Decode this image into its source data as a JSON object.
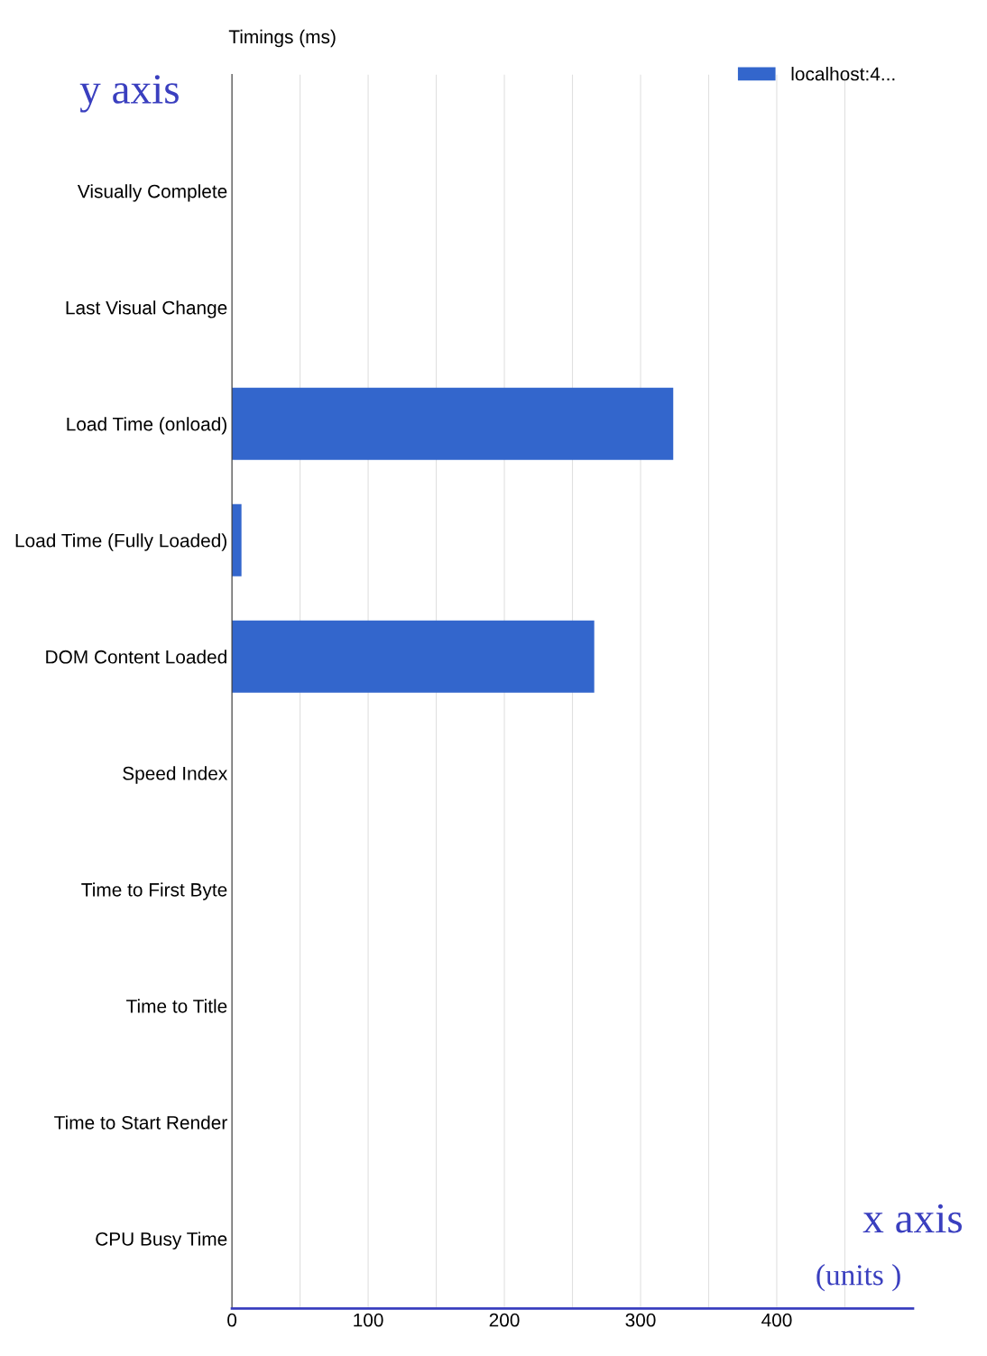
{
  "chart_data": {
    "type": "bar",
    "orientation": "horizontal",
    "title": "Timings (ms)",
    "categories": [
      "Visually Complete",
      "Last Visual Change",
      "Load Time (onload)",
      "Load Time (Fully Loaded)",
      "DOM Content Loaded",
      "Speed Index",
      "Time to First Byte",
      "Time to Title",
      "Time to Start Render",
      "CPU Busy Time"
    ],
    "series": [
      {
        "name": "localhost:4...",
        "color": "#3366cc",
        "values": [
          0,
          0,
          324,
          7,
          266,
          0,
          0,
          0,
          0,
          0
        ]
      }
    ],
    "xlim": [
      0,
      500
    ],
    "xticks": [
      0,
      {
        "value": 50,
        "label": null
      },
      100,
      {
        "value": 150,
        "label": null
      },
      200,
      {
        "value": 250,
        "label": null
      },
      300,
      {
        "value": 350,
        "label": null
      },
      400,
      {
        "value": 450,
        "label": null
      }
    ],
    "grid": "x",
    "legend": "top right",
    "annotations": [
      "y axis",
      "x axis",
      "(units )"
    ]
  }
}
